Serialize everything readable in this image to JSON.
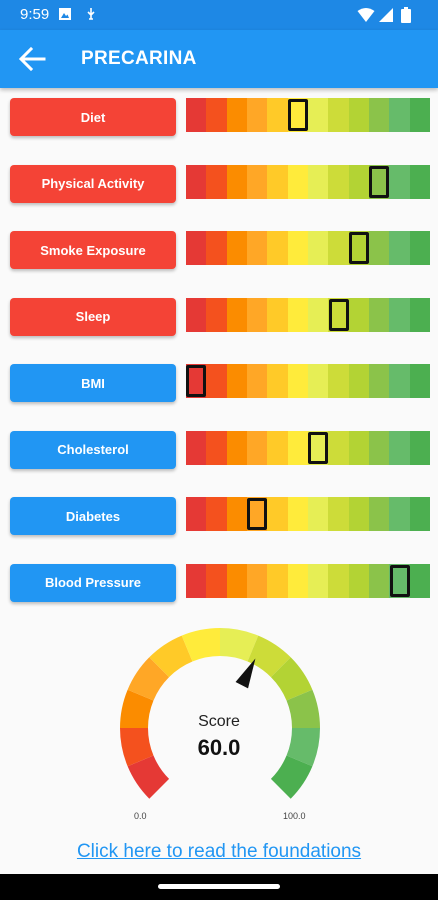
{
  "status_bar": {
    "time": "9:59"
  },
  "app_bar": {
    "title": "PRECARINA"
  },
  "scale_colors": [
    "#e53935",
    "#f4511e",
    "#fb8c00",
    "#ffa726",
    "#ffca28",
    "#ffeb3b",
    "#e6ee55",
    "#cddc39",
    "#b3d334",
    "#8bc34a",
    "#66bb6a",
    "#4caf50"
  ],
  "metrics": [
    {
      "label": "Diet",
      "status": "red",
      "level_segment": 6
    },
    {
      "label": "Physical Activity",
      "status": "red",
      "level_segment": 10
    },
    {
      "label": "Smoke Exposure",
      "status": "red",
      "level_segment": 9
    },
    {
      "label": "Sleep",
      "status": "red",
      "level_segment": 8
    },
    {
      "label": "BMI",
      "status": "blue",
      "level_segment": 1
    },
    {
      "label": "Cholesterol",
      "status": "blue",
      "level_segment": 7
    },
    {
      "label": "Diabetes",
      "status": "blue",
      "level_segment": 4
    },
    {
      "label": "Blood Pressure",
      "status": "blue",
      "level_segment": 11
    }
  ],
  "gauge": {
    "label": "Score",
    "value": "60.0",
    "score": 60,
    "min": "0.0",
    "max": "100.0"
  },
  "link": {
    "text": "Click here to read the foundations"
  }
}
